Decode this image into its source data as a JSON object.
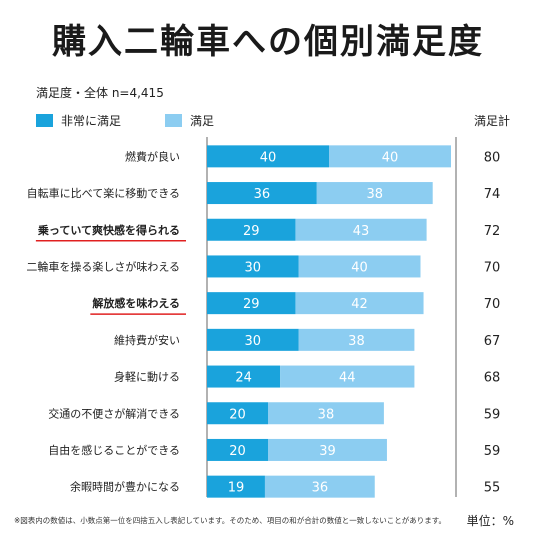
{
  "title": "購入二輪車への個別満足度",
  "subtitle": "満足度・全体  n=4,415",
  "colors": {
    "very_satisfied": "#1aa3dc",
    "satisfied": "#8ccdf1",
    "grid": "#666666",
    "highlight_underline": "#e02020"
  },
  "total_label": "満足計",
  "footnote": "※図表内の数値は、小数点第一位を四捨五入し表記しています。そのため、項目の和が合計の数値と一致しないことがあります。",
  "unit_label": "単位：%",
  "chart_data": {
    "type": "bar",
    "orientation": "horizontal",
    "stacked": true,
    "xlim": [
      0,
      100
    ],
    "categories": [
      "燃費が良い",
      "自転車に比べて楽に移動できる",
      "乗っていて爽快感を得られる",
      "二輪車を操る楽しさが味わえる",
      "解放感を味わえる",
      "維持費が安い",
      "身軽に動ける",
      "交通の不便さが解消できる",
      "自由を感じることができる",
      "余暇時間が豊かになる"
    ],
    "highlighted": [
      false,
      false,
      true,
      false,
      true,
      false,
      false,
      false,
      false,
      false
    ],
    "series": [
      {
        "name": "非常に満足",
        "values": [
          40,
          36,
          29,
          30,
          29,
          30,
          24,
          20,
          20,
          19
        ]
      },
      {
        "name": "満足",
        "values": [
          40,
          38,
          43,
          40,
          42,
          38,
          44,
          38,
          39,
          36
        ]
      }
    ],
    "totals": [
      80,
      74,
      72,
      70,
      70,
      67,
      68,
      59,
      59,
      55
    ]
  }
}
